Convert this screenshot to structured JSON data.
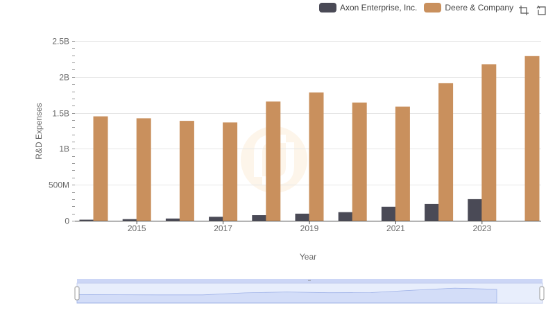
{
  "chart_data": {
    "type": "bar",
    "xlabel": "Year",
    "ylabel": "R&D Expenses",
    "categories": [
      "2014",
      "2015",
      "2016",
      "2017",
      "2018",
      "2019",
      "2020",
      "2021",
      "2022",
      "2023",
      "2024"
    ],
    "x_tick_labels": [
      "2015",
      "2017",
      "2019",
      "2021",
      "2023"
    ],
    "y_tick_labels": [
      "0",
      "500M",
      "1B",
      "1.5B",
      "2B",
      "2.5B"
    ],
    "y_ticks": [
      0,
      500000000,
      1000000000,
      1500000000,
      2000000000,
      2500000000
    ],
    "ylim": [
      0,
      2500000000
    ],
    "grid": true,
    "legend_position": "top-right",
    "series": [
      {
        "name": "Axon Enterprise, Inc.",
        "color": "#4a4a56",
        "values": [
          14000000,
          22000000,
          31000000,
          55000000,
          77000000,
          98000000,
          120000000,
          195000000,
          233000000,
          300000000,
          null
        ]
      },
      {
        "name": "Deere & Company",
        "color": "#c9905d",
        "values": [
          1452000000,
          1425000000,
          1389000000,
          1367000000,
          1657000000,
          1783000000,
          1644000000,
          1587000000,
          1912000000,
          2177000000,
          2290000000
        ]
      }
    ]
  },
  "toolbar": {
    "zoom_icon": "crop-icon",
    "reset_icon": "reset-icon"
  }
}
